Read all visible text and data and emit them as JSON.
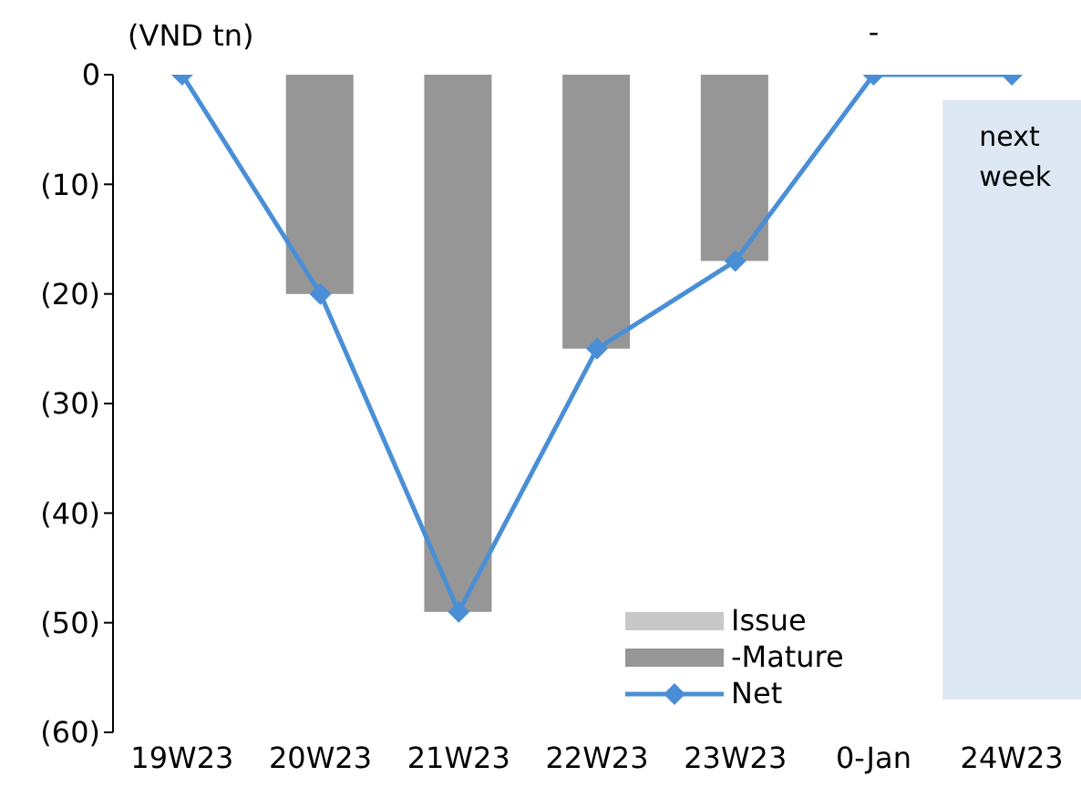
{
  "chart_data": {
    "type": "bar",
    "ylabel": "(VND tn)",
    "categories": [
      "19W23",
      "20W23",
      "21W23",
      "22W23",
      "23W23",
      "0-Jan",
      "24W23"
    ],
    "series": [
      {
        "name": "Issue",
        "color": "#c8c8c8",
        "values": [
          0,
          0,
          0,
          0,
          0,
          0,
          0
        ]
      },
      {
        "name": "-Mature",
        "color": "#969696",
        "values": [
          0,
          -20,
          -49,
          -25,
          -17,
          0,
          0
        ]
      },
      {
        "name": "Net",
        "type": "line",
        "color": "#4a8fd6",
        "marker": "diamond",
        "values": [
          0,
          -20,
          -49,
          -25,
          -17,
          0,
          0
        ]
      }
    ],
    "stacked": true,
    "ylim": [
      -60,
      0
    ],
    "yticks": [
      {
        "value": 0,
        "label": "0"
      },
      {
        "value": -10,
        "label": "(10)"
      },
      {
        "value": -20,
        "label": "(20)"
      },
      {
        "value": -30,
        "label": "(30)"
      },
      {
        "value": -40,
        "label": "(40)"
      },
      {
        "value": -50,
        "label": "(50)"
      },
      {
        "value": -60,
        "label": "(60)"
      }
    ],
    "bands": [
      {
        "axis": "x",
        "from": "24W23",
        "to": "24W23",
        "label": "next week",
        "color": "#dde8f4"
      }
    ],
    "annotations": [
      {
        "text": "-",
        "x": "0-Jan",
        "y": 0
      }
    ],
    "grid": false,
    "legend": "bottom right"
  }
}
